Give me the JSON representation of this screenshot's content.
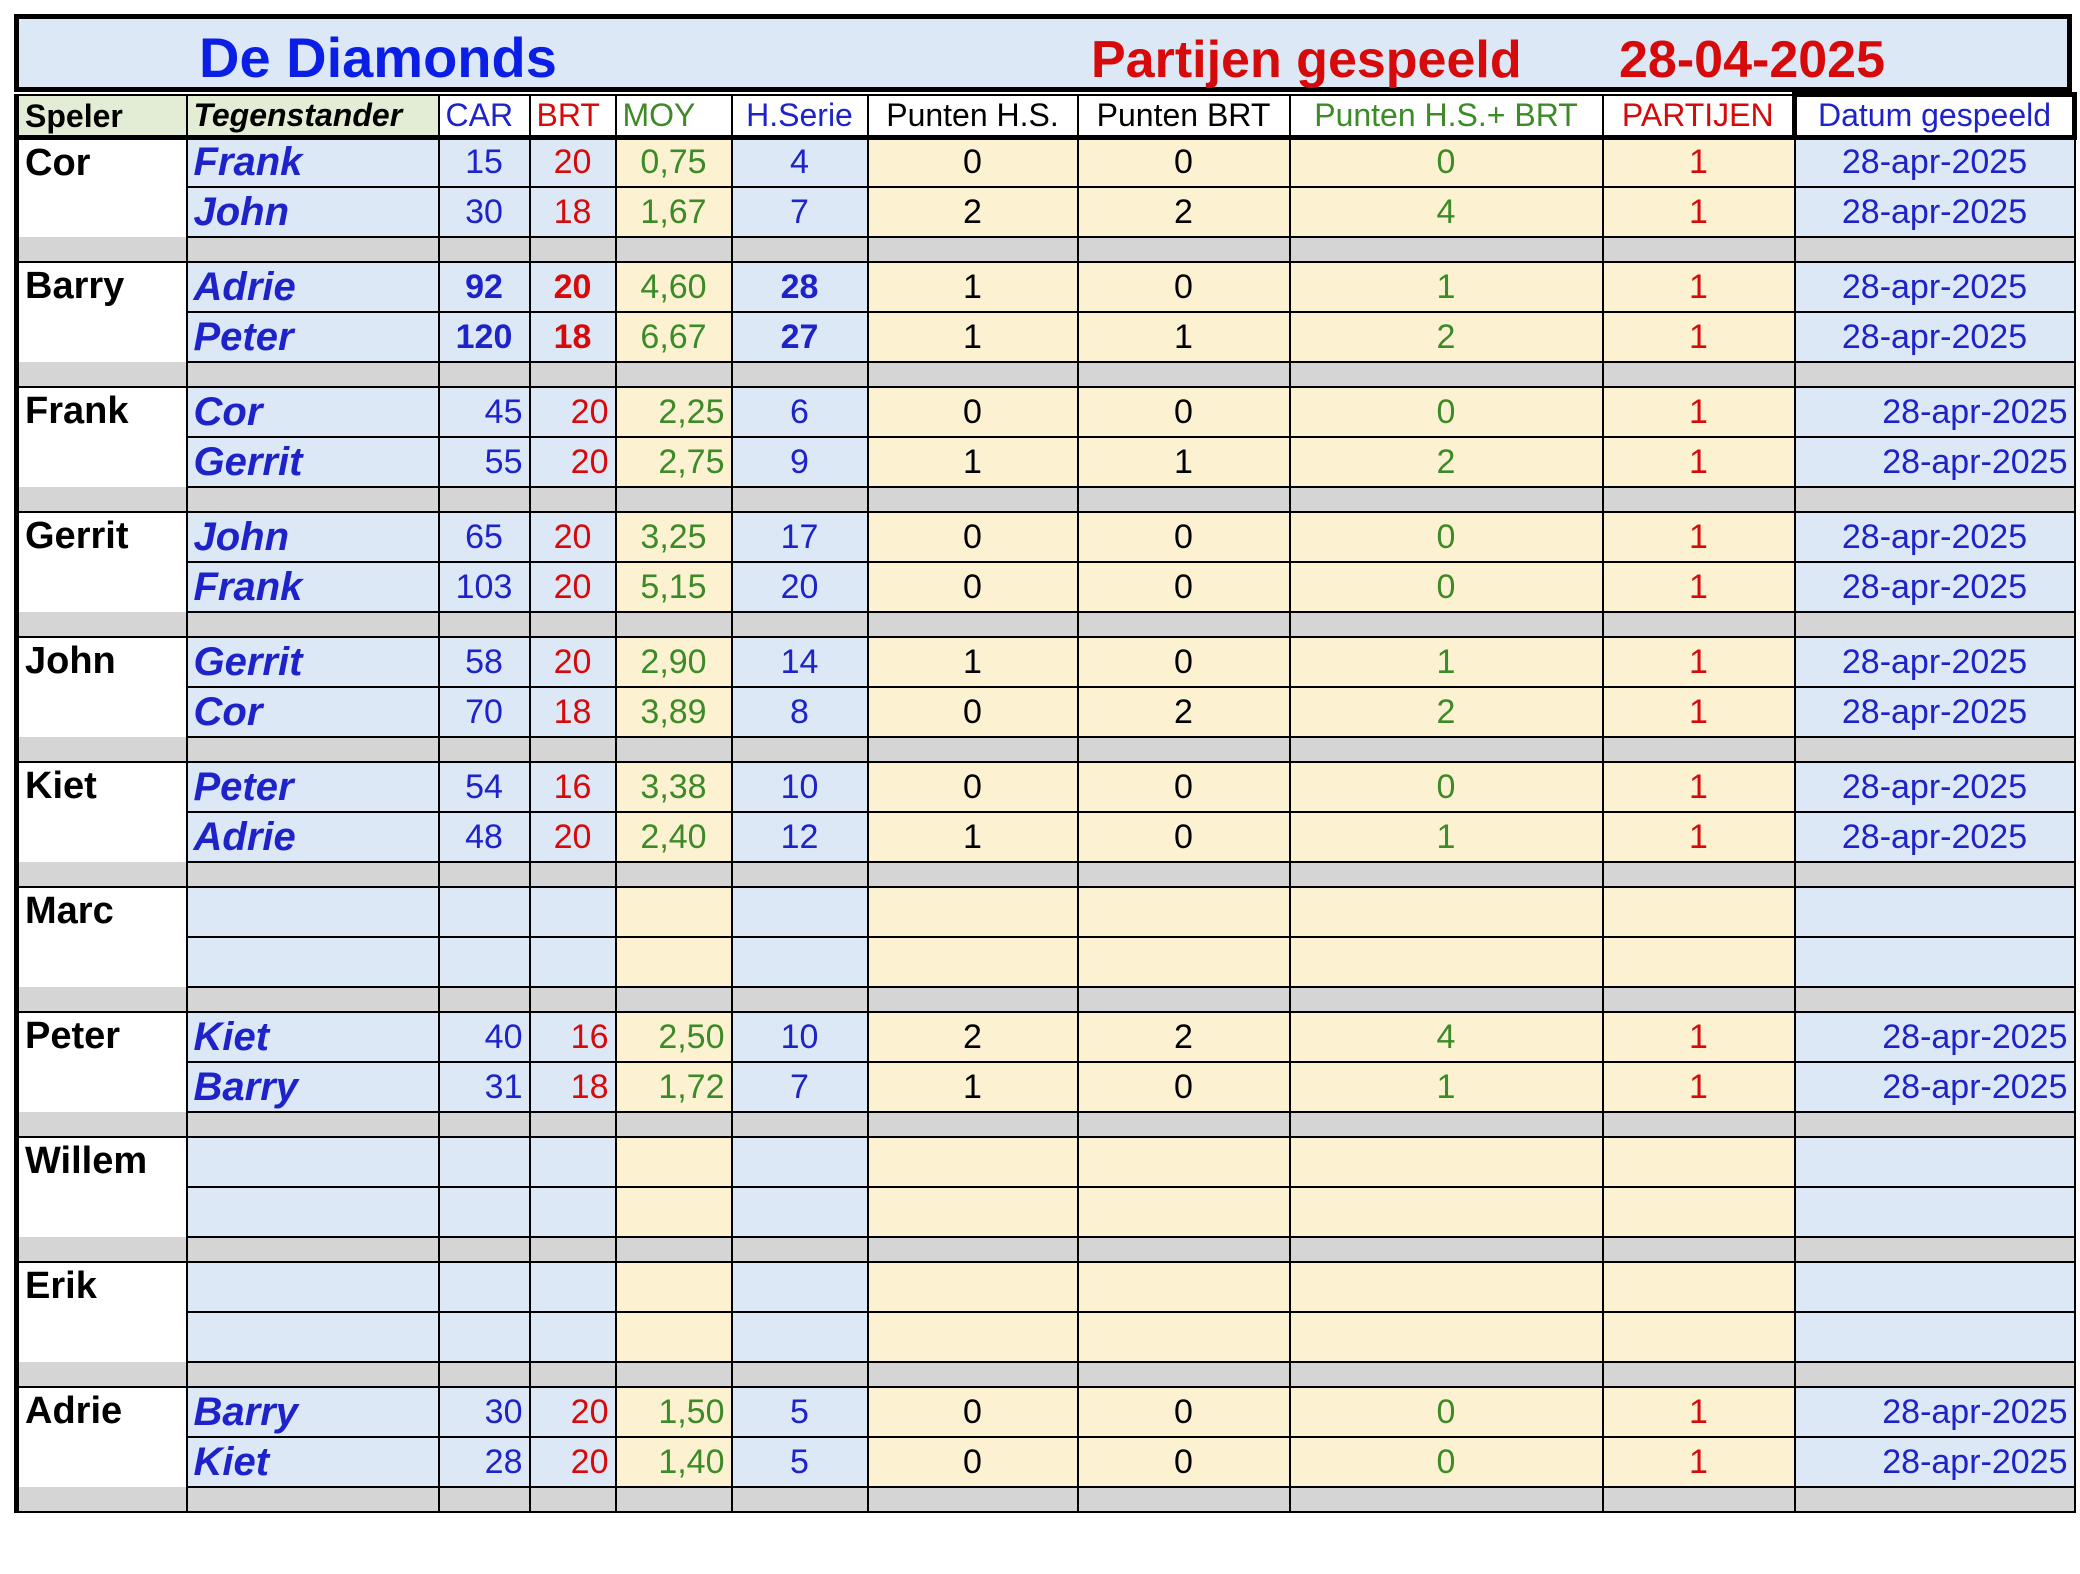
{
  "title": {
    "team": "De Diamonds",
    "subtitle": "Partijen gespeeld",
    "date": "28-04-2025"
  },
  "headers": [
    "Speler",
    "Tegenstander",
    "CAR",
    "BRT",
    "MOY",
    "H.Serie",
    "Punten H.S.",
    "Punten BRT",
    "Punten H.S.+ BRT",
    "PARTIJEN",
    "Datum gespeeld"
  ],
  "colors": {
    "blue": "#1d23c9",
    "red": "#d60a0a",
    "green": "#3d8a28",
    "light_blue_cell": "#dde8f6",
    "light_yellow_cell": "#fcf2d2",
    "separator_gray": "#d5d5d5"
  },
  "players": [
    {
      "name": "Cor",
      "games": [
        {
          "opp": "Frank",
          "car": "15",
          "brt": "20",
          "moy": "0,75",
          "hs": "4",
          "phs": "0",
          "pbrt": "0",
          "ptot": "0",
          "partijen": "1",
          "datum": "28-apr-2025"
        },
        {
          "opp": "John",
          "car": "30",
          "brt": "18",
          "moy": "1,67",
          "hs": "7",
          "phs": "2",
          "pbrt": "2",
          "ptot": "4",
          "partijen": "1",
          "datum": "28-apr-2025"
        }
      ]
    },
    {
      "name": "Barry",
      "bold_stats": true,
      "games": [
        {
          "opp": "Adrie",
          "car": "92",
          "brt": "20",
          "moy": "4,60",
          "hs": "28",
          "phs": "1",
          "pbrt": "0",
          "ptot": "1",
          "partijen": "1",
          "datum": "28-apr-2025"
        },
        {
          "opp": "Peter",
          "car": "120",
          "brt": "18",
          "moy": "6,67",
          "hs": "27",
          "phs": "1",
          "pbrt": "1",
          "ptot": "2",
          "partijen": "1",
          "datum": "28-apr-2025"
        }
      ]
    },
    {
      "name": "Frank",
      "right_align": true,
      "games": [
        {
          "opp": "Cor",
          "car": "45",
          "brt": "20",
          "moy": "2,25",
          "hs": "6",
          "phs": "0",
          "pbrt": "0",
          "ptot": "0",
          "partijen": "1",
          "datum": "28-apr-2025"
        },
        {
          "opp": "Gerrit",
          "car": "55",
          "brt": "20",
          "moy": "2,75",
          "hs": "9",
          "phs": "1",
          "pbrt": "1",
          "ptot": "2",
          "partijen": "1",
          "datum": "28-apr-2025"
        }
      ]
    },
    {
      "name": "Gerrit",
      "games": [
        {
          "opp": "John",
          "car": "65",
          "brt": "20",
          "moy": "3,25",
          "hs": "17",
          "phs": "0",
          "pbrt": "0",
          "ptot": "0",
          "partijen": "1",
          "datum": "28-apr-2025"
        },
        {
          "opp": "Frank",
          "car": "103",
          "brt": "20",
          "moy": "5,15",
          "hs": "20",
          "phs": "0",
          "pbrt": "0",
          "ptot": "0",
          "partijen": "1",
          "datum": "28-apr-2025"
        }
      ]
    },
    {
      "name": "John",
      "games": [
        {
          "opp": "Gerrit",
          "car": "58",
          "brt": "20",
          "moy": "2,90",
          "hs": "14",
          "phs": "1",
          "pbrt": "0",
          "ptot": "1",
          "partijen": "1",
          "datum": "28-apr-2025"
        },
        {
          "opp": "Cor",
          "car": "70",
          "brt": "18",
          "moy": "3,89",
          "hs": "8",
          "phs": "0",
          "pbrt": "2",
          "ptot": "2",
          "partijen": "1",
          "datum": "28-apr-2025"
        }
      ]
    },
    {
      "name": "Kiet",
      "games": [
        {
          "opp": "Peter",
          "car": "54",
          "brt": "16",
          "moy": "3,38",
          "hs": "10",
          "phs": "0",
          "pbrt": "0",
          "ptot": "0",
          "partijen": "1",
          "datum": "28-apr-2025"
        },
        {
          "opp": "Adrie",
          "car": "48",
          "brt": "20",
          "moy": "2,40",
          "hs": "12",
          "phs": "1",
          "pbrt": "0",
          "ptot": "1",
          "partijen": "1",
          "datum": "28-apr-2025"
        }
      ]
    },
    {
      "name": "Marc",
      "games": [
        {
          "opp": "",
          "car": "",
          "brt": "",
          "moy": "",
          "hs": "",
          "phs": "",
          "pbrt": "",
          "ptot": "",
          "partijen": "",
          "datum": ""
        },
        {
          "opp": "",
          "car": "",
          "brt": "",
          "moy": "",
          "hs": "",
          "phs": "",
          "pbrt": "",
          "ptot": "",
          "partijen": "",
          "datum": ""
        }
      ]
    },
    {
      "name": "Peter",
      "right_align": true,
      "games": [
        {
          "opp": "Kiet",
          "car": "40",
          "brt": "16",
          "moy": "2,50",
          "hs": "10",
          "phs": "2",
          "pbrt": "2",
          "ptot": "4",
          "partijen": "1",
          "datum": "28-apr-2025"
        },
        {
          "opp": "Barry",
          "car": "31",
          "brt": "18",
          "moy": "1,72",
          "hs": "7",
          "phs": "1",
          "pbrt": "0",
          "ptot": "1",
          "partijen": "1",
          "datum": "28-apr-2025"
        }
      ]
    },
    {
      "name": "Willem",
      "games": [
        {
          "opp": "",
          "car": "",
          "brt": "",
          "moy": "",
          "hs": "",
          "phs": "",
          "pbrt": "",
          "ptot": "",
          "partijen": "",
          "datum": ""
        },
        {
          "opp": "",
          "car": "",
          "brt": "",
          "moy": "",
          "hs": "",
          "phs": "",
          "pbrt": "",
          "ptot": "",
          "partijen": "",
          "datum": ""
        }
      ]
    },
    {
      "name": "Erik",
      "games": [
        {
          "opp": "",
          "car": "",
          "brt": "",
          "moy": "",
          "hs": "",
          "phs": "",
          "pbrt": "",
          "ptot": "",
          "partijen": "",
          "datum": ""
        },
        {
          "opp": "",
          "car": "",
          "brt": "",
          "moy": "",
          "hs": "",
          "phs": "",
          "pbrt": "",
          "ptot": "",
          "partijen": "",
          "datum": ""
        }
      ]
    },
    {
      "name": "Adrie",
      "right_align": true,
      "games": [
        {
          "opp": "Barry",
          "car": "30",
          "brt": "20",
          "moy": "1,50",
          "hs": "5",
          "phs": "0",
          "pbrt": "0",
          "ptot": "0",
          "partijen": "1",
          "datum": "28-apr-2025"
        },
        {
          "opp": "Kiet",
          "car": "28",
          "brt": "20",
          "moy": "1,40",
          "hs": "5",
          "phs": "0",
          "pbrt": "0",
          "ptot": "0",
          "partijen": "1",
          "datum": "28-apr-2025"
        }
      ]
    }
  ]
}
